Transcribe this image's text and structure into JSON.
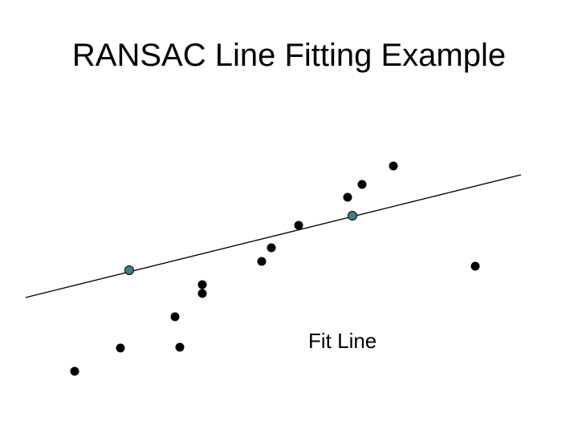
{
  "title": "RANSAC Line Fitting Example",
  "fit_line_label": "Fit Line",
  "colors": {
    "background": "#ffffff",
    "point": "#000000",
    "sample_point": "#3f7f85",
    "line": "#000000"
  },
  "points": [
    {
      "id": "p1",
      "role": "data"
    },
    {
      "id": "p2",
      "role": "data"
    },
    {
      "id": "p3",
      "role": "data"
    },
    {
      "id": "p4",
      "role": "data"
    },
    {
      "id": "p5",
      "role": "data"
    },
    {
      "id": "p6",
      "role": "data"
    },
    {
      "id": "p7",
      "role": "data"
    },
    {
      "id": "p8",
      "role": "data"
    },
    {
      "id": "p9",
      "role": "data"
    },
    {
      "id": "p10",
      "role": "data"
    },
    {
      "id": "p11",
      "role": "data"
    },
    {
      "id": "p12",
      "role": "data"
    },
    {
      "id": "p13",
      "role": "data"
    },
    {
      "id": "p14",
      "role": "data"
    },
    {
      "id": "s1",
      "role": "sample"
    },
    {
      "id": "s2",
      "role": "sample"
    }
  ]
}
